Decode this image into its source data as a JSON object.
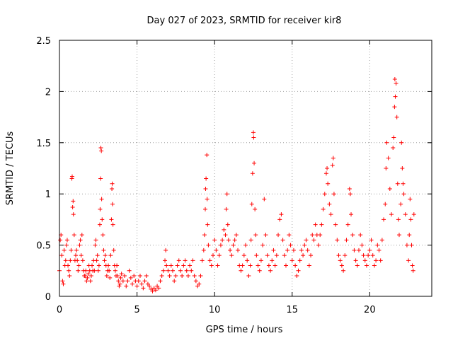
{
  "chart_data": {
    "type": "scatter",
    "title": "Day 027 of 2023, SRMTID for receiver kir8",
    "xlabel": "GPS time / hours",
    "ylabel": "SRMTID / TECUs",
    "xlim": [
      0,
      24
    ],
    "ylim": [
      0,
      2.5
    ],
    "xticks": [
      0,
      5,
      10,
      15,
      20
    ],
    "yticks": [
      0,
      0.5,
      1,
      1.5,
      2,
      2.5
    ],
    "xtick_labels": [
      "0",
      "5",
      "10",
      "15",
      "20"
    ],
    "ytick_labels": [
      "0",
      "0.5",
      "1",
      "1.5",
      "2",
      "2.5"
    ],
    "grid": true,
    "marker": "plus",
    "color": "#ff0000",
    "series": [
      {
        "name": "kir8",
        "points": [
          [
            0.0,
            0.25
          ],
          [
            0.05,
            0.55
          ],
          [
            0.1,
            0.6
          ],
          [
            0.15,
            0.4
          ],
          [
            0.2,
            0.15
          ],
          [
            0.25,
            0.12
          ],
          [
            0.3,
            0.45
          ],
          [
            0.35,
            0.3
          ],
          [
            0.4,
            0.35
          ],
          [
            0.45,
            0.5
          ],
          [
            0.5,
            0.55
          ],
          [
            0.55,
            0.3
          ],
          [
            0.6,
            0.25
          ],
          [
            0.65,
            0.2
          ],
          [
            0.7,
            0.35
          ],
          [
            0.75,
            0.45
          ],
          [
            0.8,
            1.15
          ],
          [
            0.82,
            1.17
          ],
          [
            0.85,
            0.87
          ],
          [
            0.88,
            0.93
          ],
          [
            0.9,
            0.8
          ],
          [
            0.95,
            0.6
          ],
          [
            1.0,
            0.35
          ],
          [
            1.05,
            0.4
          ],
          [
            1.1,
            0.45
          ],
          [
            1.15,
            0.35
          ],
          [
            1.2,
            0.25
          ],
          [
            1.25,
            0.3
          ],
          [
            1.3,
            0.5
          ],
          [
            1.35,
            0.55
          ],
          [
            1.4,
            0.4
          ],
          [
            1.45,
            0.6
          ],
          [
            1.5,
            0.35
          ],
          [
            1.55,
            0.25
          ],
          [
            1.6,
            0.2
          ],
          [
            1.65,
            0.2
          ],
          [
            1.7,
            0.25
          ],
          [
            1.75,
            0.15
          ],
          [
            1.8,
            0.18
          ],
          [
            1.85,
            0.22
          ],
          [
            1.9,
            0.3
          ],
          [
            1.95,
            0.25
          ],
          [
            2.0,
            0.15
          ],
          [
            2.05,
            0.2
          ],
          [
            2.1,
            0.3
          ],
          [
            2.15,
            0.25
          ],
          [
            2.2,
            0.35
          ],
          [
            2.25,
            0.25
          ],
          [
            2.3,
            0.5
          ],
          [
            2.35,
            0.55
          ],
          [
            2.4,
            0.35
          ],
          [
            2.45,
            0.4
          ],
          [
            2.5,
            0.25
          ],
          [
            2.55,
            0.3
          ],
          [
            2.6,
            0.7
          ],
          [
            2.62,
            0.85
          ],
          [
            2.65,
            1.15
          ],
          [
            2.67,
            1.45
          ],
          [
            2.7,
            1.42
          ],
          [
            2.72,
            0.95
          ],
          [
            2.75,
            0.75
          ],
          [
            2.8,
            0.6
          ],
          [
            2.85,
            0.45
          ],
          [
            2.9,
            0.35
          ],
          [
            2.95,
            0.4
          ],
          [
            3.0,
            0.3
          ],
          [
            3.05,
            0.2
          ],
          [
            3.1,
            0.25
          ],
          [
            3.15,
            0.3
          ],
          [
            3.2,
            0.25
          ],
          [
            3.25,
            0.18
          ],
          [
            3.3,
            0.4
          ],
          [
            3.35,
            0.75
          ],
          [
            3.38,
            1.05
          ],
          [
            3.4,
            1.1
          ],
          [
            3.42,
            0.9
          ],
          [
            3.45,
            0.7
          ],
          [
            3.5,
            0.45
          ],
          [
            3.55,
            0.3
          ],
          [
            3.6,
            0.25
          ],
          [
            3.65,
            0.2
          ],
          [
            3.7,
            0.3
          ],
          [
            3.75,
            0.2
          ],
          [
            3.8,
            0.15
          ],
          [
            3.85,
            0.1
          ],
          [
            3.9,
            0.12
          ],
          [
            3.95,
            0.18
          ],
          [
            4.0,
            0.22
          ],
          [
            4.1,
            0.15
          ],
          [
            4.2,
            0.2
          ],
          [
            4.3,
            0.1
          ],
          [
            4.4,
            0.15
          ],
          [
            4.5,
            0.25
          ],
          [
            4.6,
            0.18
          ],
          [
            4.7,
            0.12
          ],
          [
            4.8,
            0.2
          ],
          [
            4.9,
            0.15
          ],
          [
            5.0,
            0.1
          ],
          [
            5.1,
            0.15
          ],
          [
            5.2,
            0.2
          ],
          [
            5.3,
            0.12
          ],
          [
            5.4,
            0.08
          ],
          [
            5.5,
            0.15
          ],
          [
            5.6,
            0.2
          ],
          [
            5.7,
            0.12
          ],
          [
            5.8,
            0.1
          ],
          [
            5.9,
            0.07
          ],
          [
            6.0,
            0.05
          ],
          [
            6.1,
            0.08
          ],
          [
            6.2,
            0.06
          ],
          [
            6.3,
            0.1
          ],
          [
            6.4,
            0.08
          ],
          [
            6.5,
            0.15
          ],
          [
            6.6,
            0.2
          ],
          [
            6.7,
            0.25
          ],
          [
            6.8,
            0.35
          ],
          [
            6.85,
            0.45
          ],
          [
            6.9,
            0.3
          ],
          [
            7.0,
            0.25
          ],
          [
            7.1,
            0.2
          ],
          [
            7.2,
            0.3
          ],
          [
            7.3,
            0.25
          ],
          [
            7.4,
            0.15
          ],
          [
            7.5,
            0.2
          ],
          [
            7.6,
            0.3
          ],
          [
            7.7,
            0.35
          ],
          [
            7.8,
            0.25
          ],
          [
            7.9,
            0.2
          ],
          [
            8.0,
            0.3
          ],
          [
            8.1,
            0.35
          ],
          [
            8.2,
            0.25
          ],
          [
            8.3,
            0.2
          ],
          [
            8.4,
            0.3
          ],
          [
            8.5,
            0.25
          ],
          [
            8.6,
            0.35
          ],
          [
            8.7,
            0.2
          ],
          [
            8.8,
            0.15
          ],
          [
            8.9,
            0.1
          ],
          [
            9.0,
            0.12
          ],
          [
            9.1,
            0.2
          ],
          [
            9.2,
            0.35
          ],
          [
            9.3,
            0.45
          ],
          [
            9.35,
            0.6
          ],
          [
            9.4,
            0.85
          ],
          [
            9.42,
            1.05
          ],
          [
            9.45,
            1.15
          ],
          [
            9.5,
            1.38
          ],
          [
            9.52,
            0.95
          ],
          [
            9.55,
            0.7
          ],
          [
            9.6,
            0.5
          ],
          [
            9.7,
            0.35
          ],
          [
            9.8,
            0.3
          ],
          [
            9.9,
            0.4
          ],
          [
            10.0,
            0.55
          ],
          [
            10.1,
            0.45
          ],
          [
            10.2,
            0.3
          ],
          [
            10.3,
            0.4
          ],
          [
            10.4,
            0.5
          ],
          [
            10.5,
            0.55
          ],
          [
            10.6,
            0.65
          ],
          [
            10.7,
            0.6
          ],
          [
            10.75,
            0.85
          ],
          [
            10.8,
            1.0
          ],
          [
            10.85,
            0.7
          ],
          [
            10.9,
            0.55
          ],
          [
            11.0,
            0.45
          ],
          [
            11.1,
            0.4
          ],
          [
            11.2,
            0.5
          ],
          [
            11.3,
            0.55
          ],
          [
            11.4,
            0.6
          ],
          [
            11.5,
            0.45
          ],
          [
            11.6,
            0.3
          ],
          [
            11.7,
            0.25
          ],
          [
            11.8,
            0.3
          ],
          [
            11.9,
            0.4
          ],
          [
            12.0,
            0.5
          ],
          [
            12.1,
            0.35
          ],
          [
            12.2,
            0.2
          ],
          [
            12.3,
            0.3
          ],
          [
            12.35,
            0.55
          ],
          [
            12.4,
            0.9
          ],
          [
            12.45,
            1.2
          ],
          [
            12.5,
            1.6
          ],
          [
            12.52,
            1.55
          ],
          [
            12.55,
            1.3
          ],
          [
            12.6,
            0.85
          ],
          [
            12.65,
            0.6
          ],
          [
            12.7,
            0.4
          ],
          [
            12.8,
            0.3
          ],
          [
            12.9,
            0.25
          ],
          [
            13.0,
            0.35
          ],
          [
            13.1,
            0.5
          ],
          [
            13.2,
            0.95
          ],
          [
            13.3,
            0.6
          ],
          [
            13.4,
            0.4
          ],
          [
            13.5,
            0.3
          ],
          [
            13.6,
            0.25
          ],
          [
            13.7,
            0.35
          ],
          [
            13.8,
            0.45
          ],
          [
            13.9,
            0.3
          ],
          [
            14.0,
            0.4
          ],
          [
            14.1,
            0.6
          ],
          [
            14.2,
            0.75
          ],
          [
            14.3,
            0.8
          ],
          [
            14.4,
            0.55
          ],
          [
            14.5,
            0.4
          ],
          [
            14.6,
            0.3
          ],
          [
            14.7,
            0.45
          ],
          [
            14.8,
            0.6
          ],
          [
            14.9,
            0.5
          ],
          [
            15.0,
            0.35
          ],
          [
            15.1,
            0.45
          ],
          [
            15.2,
            0.3
          ],
          [
            15.3,
            0.2
          ],
          [
            15.4,
            0.25
          ],
          [
            15.5,
            0.35
          ],
          [
            15.6,
            0.45
          ],
          [
            15.7,
            0.4
          ],
          [
            15.8,
            0.5
          ],
          [
            15.9,
            0.55
          ],
          [
            16.0,
            0.45
          ],
          [
            16.1,
            0.3
          ],
          [
            16.2,
            0.4
          ],
          [
            16.3,
            0.6
          ],
          [
            16.4,
            0.55
          ],
          [
            16.5,
            0.7
          ],
          [
            16.6,
            0.6
          ],
          [
            16.7,
            0.5
          ],
          [
            16.8,
            0.6
          ],
          [
            16.9,
            0.7
          ],
          [
            17.0,
            0.85
          ],
          [
            17.1,
            1.0
          ],
          [
            17.2,
            1.2
          ],
          [
            17.25,
            1.25
          ],
          [
            17.3,
            1.1
          ],
          [
            17.4,
            0.9
          ],
          [
            17.5,
            0.8
          ],
          [
            17.6,
            1.28
          ],
          [
            17.65,
            1.35
          ],
          [
            17.7,
            1.0
          ],
          [
            17.8,
            0.7
          ],
          [
            17.9,
            0.55
          ],
          [
            18.0,
            0.4
          ],
          [
            18.1,
            0.35
          ],
          [
            18.2,
            0.3
          ],
          [
            18.3,
            0.25
          ],
          [
            18.4,
            0.4
          ],
          [
            18.5,
            0.55
          ],
          [
            18.6,
            0.7
          ],
          [
            18.7,
            1.05
          ],
          [
            18.75,
            1.0
          ],
          [
            18.8,
            0.8
          ],
          [
            18.9,
            0.6
          ],
          [
            19.0,
            0.45
          ],
          [
            19.1,
            0.35
          ],
          [
            19.2,
            0.3
          ],
          [
            19.3,
            0.45
          ],
          [
            19.4,
            0.6
          ],
          [
            19.5,
            0.5
          ],
          [
            19.6,
            0.4
          ],
          [
            19.7,
            0.35
          ],
          [
            19.8,
            0.3
          ],
          [
            19.9,
            0.4
          ],
          [
            20.0,
            0.45
          ],
          [
            20.1,
            0.55
          ],
          [
            20.2,
            0.4
          ],
          [
            20.3,
            0.3
          ],
          [
            20.4,
            0.35
          ],
          [
            20.5,
            0.5
          ],
          [
            20.6,
            0.45
          ],
          [
            20.7,
            0.35
          ],
          [
            20.8,
            0.55
          ],
          [
            20.9,
            0.75
          ],
          [
            21.0,
            0.9
          ],
          [
            21.05,
            1.25
          ],
          [
            21.1,
            1.5
          ],
          [
            21.2,
            1.35
          ],
          [
            21.3,
            1.05
          ],
          [
            21.4,
            0.8
          ],
          [
            21.5,
            1.45
          ],
          [
            21.55,
            1.55
          ],
          [
            21.6,
            1.85
          ],
          [
            21.62,
            2.12
          ],
          [
            21.65,
            1.95
          ],
          [
            21.7,
            2.08
          ],
          [
            21.75,
            1.75
          ],
          [
            21.8,
            1.1
          ],
          [
            21.85,
            0.75
          ],
          [
            21.9,
            0.6
          ],
          [
            22.0,
            0.9
          ],
          [
            22.05,
            1.5
          ],
          [
            22.1,
            1.25
          ],
          [
            22.15,
            1.1
          ],
          [
            22.2,
            1.0
          ],
          [
            22.3,
            0.8
          ],
          [
            22.4,
            0.5
          ],
          [
            22.5,
            0.35
          ],
          [
            22.55,
            0.6
          ],
          [
            22.6,
            0.95
          ],
          [
            22.65,
            0.75
          ],
          [
            22.7,
            0.5
          ],
          [
            22.75,
            0.3
          ],
          [
            22.8,
            0.25
          ],
          [
            22.85,
            0.8
          ]
        ]
      }
    ]
  }
}
